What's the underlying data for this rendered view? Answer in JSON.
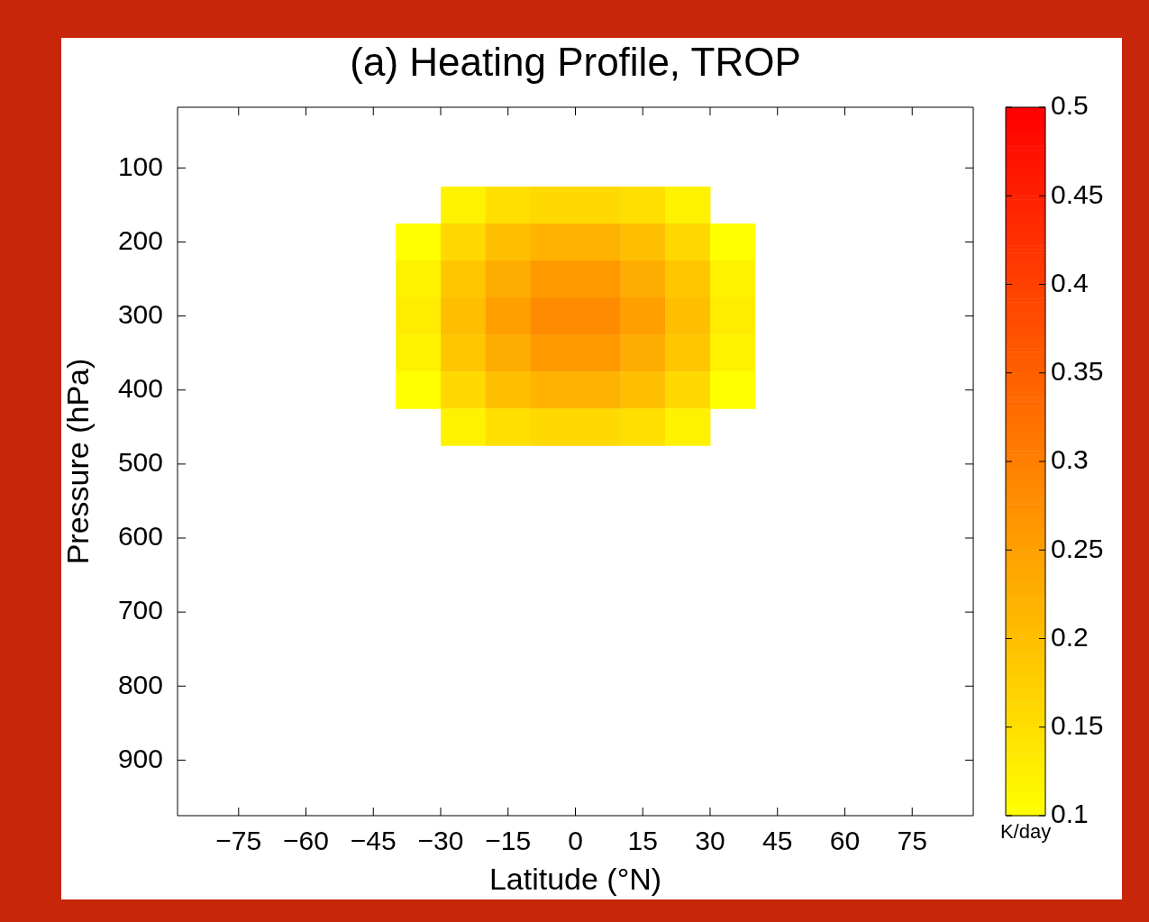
{
  "chart_data": {
    "type": "heatmap",
    "title": "(a) Heating Profile, TROP",
    "xlabel": "Latitude (°N)",
    "ylabel": "Pressure (hPa)",
    "clabel": "K/day",
    "x": [
      -35,
      -25,
      -15,
      -5,
      5,
      15,
      25,
      35
    ],
    "y": [
      150,
      200,
      250,
      300,
      350,
      400,
      450
    ],
    "xlim": [
      -88.6,
      88.6
    ],
    "xticks": [
      {
        "value": -75,
        "label": "−75"
      },
      {
        "value": -60,
        "label": "−60"
      },
      {
        "value": -45,
        "label": "−45"
      },
      {
        "value": -30,
        "label": "−30"
      },
      {
        "value": -15,
        "label": "−15"
      },
      0,
      15,
      30,
      45,
      60,
      75
    ],
    "ylim": [
      975,
      18
    ],
    "yticks": [
      100,
      200,
      300,
      400,
      500,
      600,
      700,
      800,
      900
    ],
    "clim": [
      0.1,
      0.5
    ],
    "cticks": [
      0.1,
      0.15,
      0.2,
      0.25,
      0.3,
      0.35,
      0.4,
      0.45,
      0.5
    ],
    "cells": [
      [
        null,
        0.12,
        0.15,
        0.16,
        0.16,
        0.15,
        0.12,
        null
      ],
      [
        0.1,
        0.16,
        0.2,
        0.22,
        0.22,
        0.2,
        0.16,
        0.1
      ],
      [
        0.12,
        0.19,
        0.23,
        0.26,
        0.26,
        0.23,
        0.19,
        0.12
      ],
      [
        0.13,
        0.2,
        0.25,
        0.28,
        0.28,
        0.25,
        0.2,
        0.13
      ],
      [
        0.12,
        0.19,
        0.23,
        0.26,
        0.26,
        0.23,
        0.19,
        0.12
      ],
      [
        0.1,
        0.16,
        0.2,
        0.22,
        0.22,
        0.2,
        0.16,
        0.1
      ],
      [
        null,
        0.12,
        0.15,
        0.16,
        0.16,
        0.15,
        0.12,
        null
      ]
    ]
  }
}
